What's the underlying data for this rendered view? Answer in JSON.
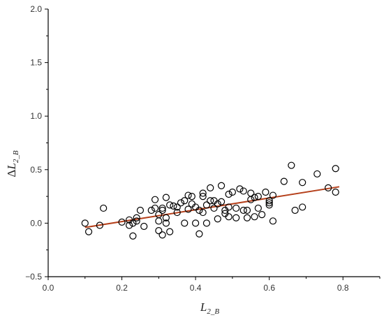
{
  "chart_data": {
    "type": "scatter",
    "title": "",
    "xlabel": {
      "main": "L",
      "sub": "2_B"
    },
    "ylabel": {
      "prefix": "Δ",
      "main": "L",
      "sub": "2_B"
    },
    "xlim": [
      0.0,
      0.9
    ],
    "ylim": [
      -0.5,
      2.0
    ],
    "x_ticks": [
      0.0,
      0.2,
      0.4,
      0.6,
      0.8
    ],
    "x_tick_labels": [
      "0.0",
      "0.2",
      "0.4",
      "0.6",
      "0.8"
    ],
    "y_ticks": [
      -0.5,
      0.0,
      0.5,
      1.0,
      1.5,
      2.0
    ],
    "y_tick_labels": [
      "−0.5",
      "0.0",
      "0.5",
      "1.0",
      "1.5",
      "2.0"
    ],
    "grid": false,
    "legend": "none",
    "marker": {
      "style": "open-circle",
      "color": "#000000"
    },
    "fit_line": {
      "x": [
        0.1,
        0.79
      ],
      "y": [
        -0.04,
        0.34
      ],
      "color": "#b5401b"
    },
    "points": [
      [
        0.1,
        0.0
      ],
      [
        0.11,
        -0.08
      ],
      [
        0.14,
        -0.02
      ],
      [
        0.15,
        0.14
      ],
      [
        0.2,
        0.01
      ],
      [
        0.22,
        -0.02
      ],
      [
        0.22,
        0.03
      ],
      [
        0.23,
        -0.12
      ],
      [
        0.23,
        0.0
      ],
      [
        0.24,
        0.02
      ],
      [
        0.24,
        0.05
      ],
      [
        0.25,
        0.12
      ],
      [
        0.26,
        -0.03
      ],
      [
        0.28,
        0.12
      ],
      [
        0.29,
        0.14
      ],
      [
        0.29,
        0.22
      ],
      [
        0.3,
        0.02
      ],
      [
        0.3,
        0.08
      ],
      [
        0.3,
        -0.07
      ],
      [
        0.31,
        0.12
      ],
      [
        0.31,
        0.14
      ],
      [
        0.31,
        -0.11
      ],
      [
        0.32,
        0.24
      ],
      [
        0.32,
        0.05
      ],
      [
        0.32,
        0.0
      ],
      [
        0.33,
        -0.08
      ],
      [
        0.33,
        0.17
      ],
      [
        0.34,
        0.16
      ],
      [
        0.35,
        0.1
      ],
      [
        0.35,
        0.15
      ],
      [
        0.36,
        0.19
      ],
      [
        0.37,
        0.21
      ],
      [
        0.37,
        0.0
      ],
      [
        0.38,
        0.26
      ],
      [
        0.38,
        0.13
      ],
      [
        0.39,
        0.18
      ],
      [
        0.39,
        0.25
      ],
      [
        0.4,
        0.15
      ],
      [
        0.4,
        0.0
      ],
      [
        0.41,
        0.12
      ],
      [
        0.41,
        -0.1
      ],
      [
        0.42,
        0.1
      ],
      [
        0.42,
        0.25
      ],
      [
        0.42,
        0.28
      ],
      [
        0.43,
        0.17
      ],
      [
        0.43,
        0.0
      ],
      [
        0.44,
        0.21
      ],
      [
        0.44,
        0.33
      ],
      [
        0.45,
        0.14
      ],
      [
        0.45,
        0.21
      ],
      [
        0.46,
        0.04
      ],
      [
        0.46,
        0.18
      ],
      [
        0.47,
        0.2
      ],
      [
        0.47,
        0.35
      ],
      [
        0.48,
        0.12
      ],
      [
        0.48,
        0.09
      ],
      [
        0.49,
        0.15
      ],
      [
        0.49,
        0.27
      ],
      [
        0.49,
        0.06
      ],
      [
        0.5,
        0.29
      ],
      [
        0.51,
        0.05
      ],
      [
        0.51,
        0.14
      ],
      [
        0.52,
        0.32
      ],
      [
        0.53,
        0.3
      ],
      [
        0.53,
        0.12
      ],
      [
        0.54,
        0.05
      ],
      [
        0.54,
        0.12
      ],
      [
        0.55,
        0.22
      ],
      [
        0.55,
        0.28
      ],
      [
        0.56,
        0.06
      ],
      [
        0.56,
        0.24
      ],
      [
        0.57,
        0.25
      ],
      [
        0.57,
        0.14
      ],
      [
        0.58,
        0.08
      ],
      [
        0.59,
        0.29
      ],
      [
        0.6,
        0.17
      ],
      [
        0.6,
        0.19
      ],
      [
        0.6,
        0.21
      ],
      [
        0.61,
        0.26
      ],
      [
        0.61,
        0.02
      ],
      [
        0.64,
        0.39
      ],
      [
        0.66,
        0.54
      ],
      [
        0.67,
        0.12
      ],
      [
        0.69,
        0.38
      ],
      [
        0.69,
        0.15
      ],
      [
        0.73,
        0.46
      ],
      [
        0.76,
        0.33
      ],
      [
        0.78,
        0.29
      ],
      [
        0.78,
        0.51
      ]
    ]
  }
}
